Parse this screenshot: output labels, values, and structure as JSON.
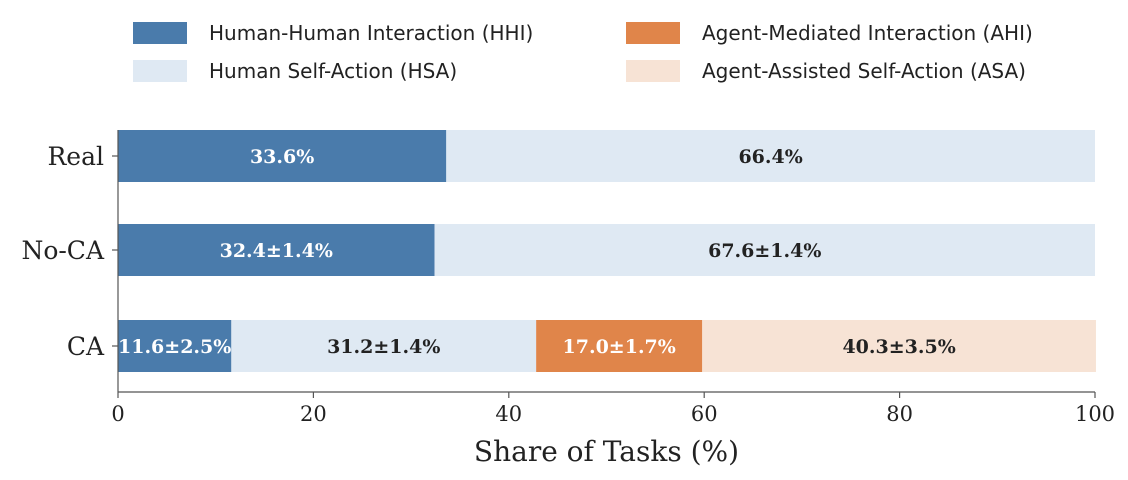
{
  "chart_data": {
    "type": "bar",
    "orientation": "horizontal",
    "stacked": true,
    "title": "",
    "xlabel": "Share of Tasks (%)",
    "ylabel": "",
    "xlim": [
      0,
      100
    ],
    "xticks": [
      0,
      20,
      40,
      60,
      80,
      100
    ],
    "grid": false,
    "legend_position": "top",
    "categories": [
      "Real",
      "No-CA",
      "CA"
    ],
    "series": [
      {
        "name": "Human-Human Interaction (HHI)",
        "color": "#4a7bab",
        "label_color": "#ffffff",
        "values": [
          33.6,
          32.4,
          11.6
        ],
        "labels": [
          "33.6%",
          "32.4±1.4%",
          "11.6±2.5%"
        ]
      },
      {
        "name": "Human Self-Action (HSA)",
        "color": "#dfe9f3",
        "label_color": "#222222",
        "values": [
          66.4,
          67.6,
          31.2
        ],
        "labels": [
          "66.4%",
          "67.6±1.4%",
          "31.2±1.4%"
        ]
      },
      {
        "name": "Agent-Mediated Interaction (AHI)",
        "color": "#e0854a",
        "label_color": "#ffffff",
        "values": [
          0,
          0,
          17.0
        ],
        "labels": [
          "",
          "",
          "17.0±1.7%"
        ]
      },
      {
        "name": "Agent-Assisted Self-Action (ASA)",
        "color": "#f7e3d5",
        "label_color": "#222222",
        "values": [
          0,
          0,
          40.3
        ],
        "labels": [
          "",
          "",
          "40.3±3.5%"
        ]
      }
    ]
  }
}
